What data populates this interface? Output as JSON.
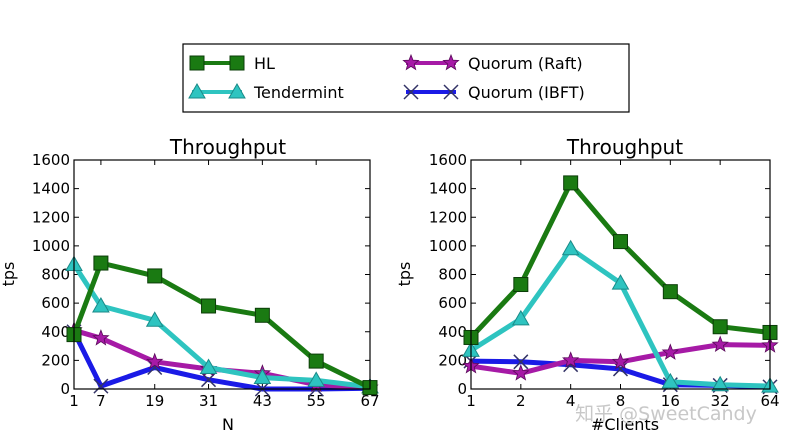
{
  "legend": {
    "placement": "top-center",
    "entries": [
      {
        "label": "HL",
        "color": "#1a7a12",
        "marker": "square"
      },
      {
        "label": "Tendermint",
        "color": "#2ec4c0",
        "marker": "triangle"
      },
      {
        "label": "Quorum (Raft)",
        "color": "#a61aa6",
        "marker": "star"
      },
      {
        "label": "Quorum (IBFT)",
        "color": "#1a1ae6",
        "marker": "x"
      }
    ]
  },
  "watermark": "知乎 @SweetCandy",
  "chart_data": [
    {
      "type": "line",
      "title": "Throughput",
      "xlabel": "N",
      "ylabel": "tps",
      "x": [
        1,
        7,
        19,
        31,
        43,
        55,
        67
      ],
      "xticks": [
        "1",
        "7",
        "19",
        "31",
        "43",
        "55",
        "67"
      ],
      "xscale": "linear",
      "xlim": [
        1,
        67
      ],
      "ylim": [
        0,
        1600
      ],
      "yticks": [
        "0",
        "200",
        "400",
        "600",
        "800",
        "1000",
        "1200",
        "1400",
        "1600"
      ],
      "grid": false,
      "series": [
        {
          "name": "HL",
          "values": [
            380,
            880,
            790,
            580,
            515,
            195,
            10
          ]
        },
        {
          "name": "Tendermint",
          "values": [
            870,
            580,
            480,
            150,
            80,
            60,
            15
          ]
        },
        {
          "name": "Quorum (Raft)",
          "values": [
            410,
            355,
            190,
            140,
            110,
            30,
            10
          ]
        },
        {
          "name": "Quorum (IBFT)",
          "values": [
            400,
            20,
            150,
            65,
            0,
            0,
            5
          ]
        }
      ]
    },
    {
      "type": "line",
      "title": "Throughput",
      "xlabel": "#Clients",
      "ylabel": "tps",
      "x": [
        1,
        2,
        4,
        8,
        16,
        32,
        64
      ],
      "xticks": [
        "1",
        "2",
        "4",
        "8",
        "16",
        "32",
        "64"
      ],
      "xscale": "log2",
      "xlim": [
        1,
        64
      ],
      "ylim": [
        0,
        1600
      ],
      "yticks": [
        "0",
        "200",
        "400",
        "600",
        "800",
        "1000",
        "1200",
        "1400",
        "1600"
      ],
      "grid": false,
      "series": [
        {
          "name": "HL",
          "values": [
            360,
            730,
            1440,
            1030,
            680,
            435,
            395
          ]
        },
        {
          "name": "Tendermint",
          "values": [
            270,
            490,
            980,
            740,
            50,
            30,
            20
          ]
        },
        {
          "name": "Quorum (Raft)",
          "values": [
            160,
            110,
            200,
            190,
            255,
            310,
            305
          ]
        },
        {
          "name": "Quorum (IBFT)",
          "values": [
            195,
            190,
            170,
            140,
            30,
            25,
            15
          ]
        }
      ]
    }
  ]
}
